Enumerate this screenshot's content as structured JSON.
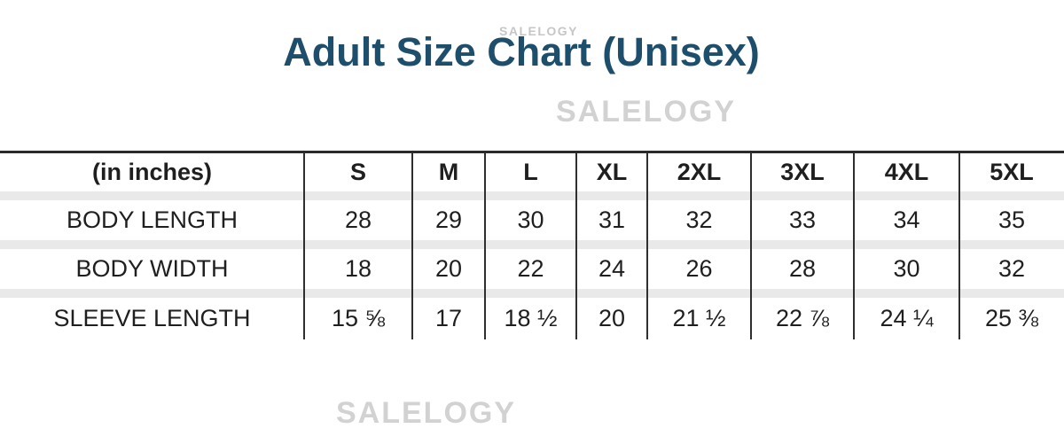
{
  "page": {
    "background": "#ffffff",
    "title": "Adult Size Chart (Unisex)",
    "title_color": "#1d4e6b",
    "watermark_text": "SALELOGY",
    "watermark_color": "#d2d2d2"
  },
  "size_table": {
    "unit_header": "(in inches)",
    "size_columns": [
      "S",
      "M",
      "L",
      "XL",
      "2XL",
      "3XL",
      "4XL",
      "5XL"
    ],
    "rows": [
      {
        "label": "BODY LENGTH",
        "values": [
          "28",
          "29",
          "30",
          "31",
          "32",
          "33",
          "34",
          "35"
        ]
      },
      {
        "label": "BODY WIDTH",
        "values": [
          "18",
          "20",
          "22",
          "24",
          "26",
          "28",
          "30",
          "32"
        ]
      },
      {
        "label": "SLEEVE LENGTH",
        "values": [
          "15 ⅝",
          "17",
          "18 ½",
          "20",
          "21 ½",
          "22 ⅞",
          "24 ¼",
          "25 ⅜"
        ]
      }
    ],
    "top_border_color": "#2b2b2b",
    "row_separator_color": "#e9e9e9",
    "column_line_color": "#2f2f2f",
    "text_color": "#1f1f1f"
  }
}
